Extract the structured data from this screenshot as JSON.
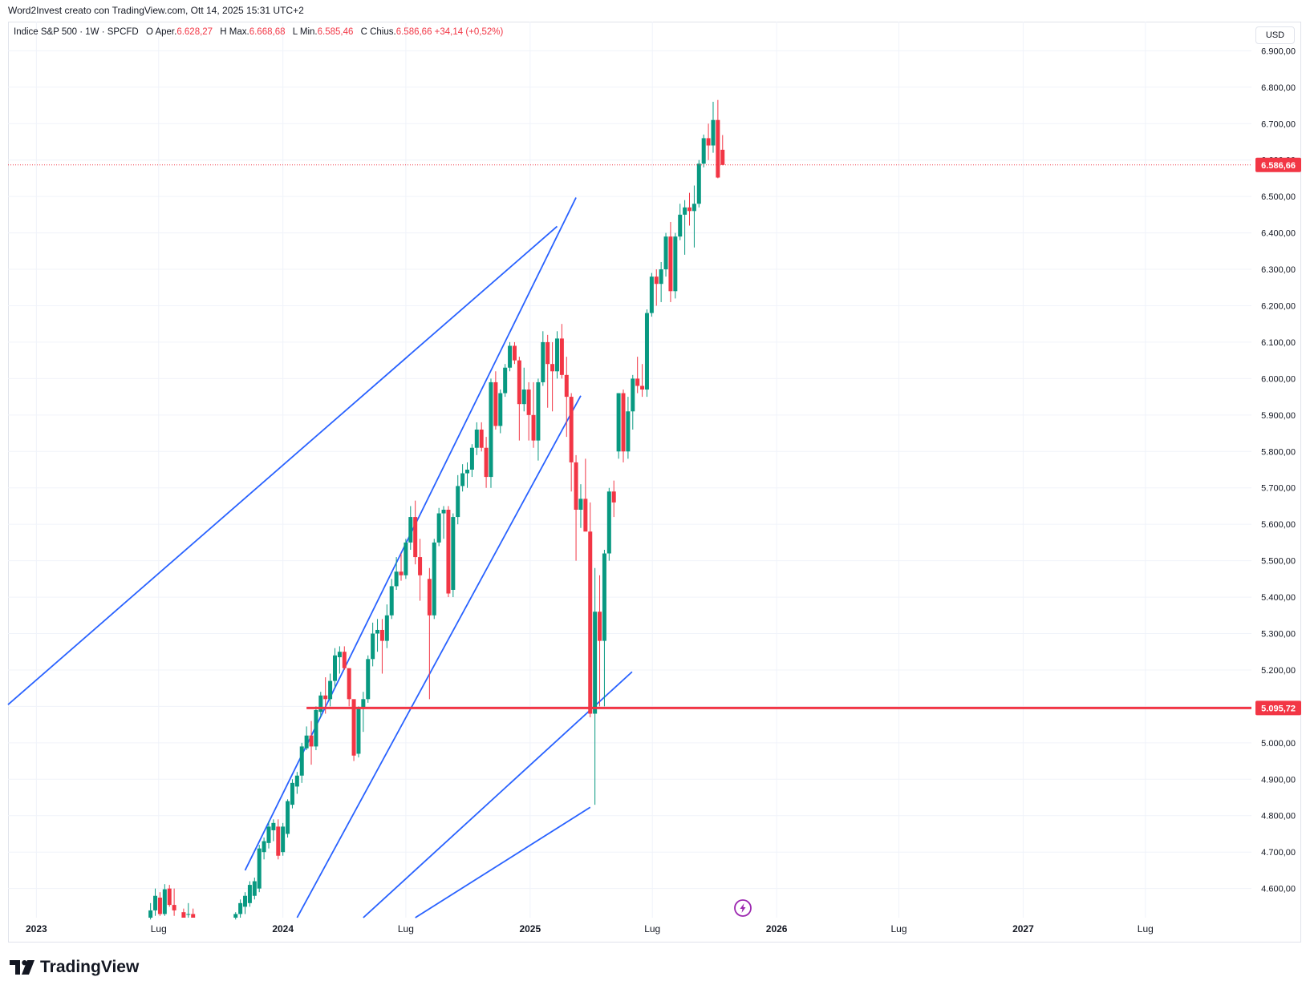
{
  "header": {
    "caption": "Word2Invest creato con TradingView.com, Ott 14, 2025 15:31 UTC+2"
  },
  "legend": {
    "symbol": "Indice S&P 500 · 1W · SPCFD",
    "open_label": "O",
    "open_prefix": "Aper.",
    "open_value": "6.628,27",
    "high_label": "H",
    "high_prefix": "Max.",
    "high_value": "6.668,68",
    "low_label": "L",
    "low_prefix": "Min.",
    "low_value": "6.585,46",
    "close_label": "C",
    "close_prefix": "Chius.",
    "close_value": "6.586,66",
    "change_value": "+34,14 (+0,52%)"
  },
  "currency_button": "USD",
  "footer": {
    "brand": "TradingView"
  },
  "colors": {
    "up": "#089981",
    "down": "#f23645",
    "trendline": "#2962ff",
    "support": "#f23645",
    "grid": "#f0f3fa"
  },
  "chart_data": {
    "type": "candlestick",
    "symbol": "Indice S&P 500",
    "interval": "1W",
    "ylim": [
      4520,
      6980
    ],
    "xlim": [
      "2022-11-20",
      "2027-12-05"
    ],
    "y_ticks": [
      {
        "value": 4600,
        "label": "4.600,00"
      },
      {
        "value": 4700,
        "label": "4.700,00"
      },
      {
        "value": 4800,
        "label": "4.800,00"
      },
      {
        "value": 4900,
        "label": "4.900,00"
      },
      {
        "value": 5000,
        "label": "5.000,00"
      },
      {
        "value": 5100,
        "label": "5.100,00"
      },
      {
        "value": 5200,
        "label": "5.200,00"
      },
      {
        "value": 5300,
        "label": "5.300,00"
      },
      {
        "value": 5400,
        "label": "5.400,00"
      },
      {
        "value": 5500,
        "label": "5.500,00"
      },
      {
        "value": 5600,
        "label": "5.600,00"
      },
      {
        "value": 5700,
        "label": "5.700,00"
      },
      {
        "value": 5800,
        "label": "5.800,00"
      },
      {
        "value": 5900,
        "label": "5.900,00"
      },
      {
        "value": 6000,
        "label": "6.000,00"
      },
      {
        "value": 6100,
        "label": "6.100,00"
      },
      {
        "value": 6200,
        "label": "6.200,00"
      },
      {
        "value": 6300,
        "label": "6.300,00"
      },
      {
        "value": 6400,
        "label": "6.400,00"
      },
      {
        "value": 6500,
        "label": "6.500,00"
      },
      {
        "value": 6600,
        "label": "6.600,00"
      },
      {
        "value": 6700,
        "label": "6.700,00"
      },
      {
        "value": 6800,
        "label": "6.800,00"
      },
      {
        "value": 6900,
        "label": "6.900,00"
      }
    ],
    "x_ticks": [
      {
        "date": "2023-01-01",
        "label": "2023",
        "bold": true
      },
      {
        "date": "2023-07-01",
        "label": "Lug",
        "bold": false
      },
      {
        "date": "2024-01-01",
        "label": "2024",
        "bold": true
      },
      {
        "date": "2024-07-01",
        "label": "Lug",
        "bold": false
      },
      {
        "date": "2025-01-01",
        "label": "2025",
        "bold": true
      },
      {
        "date": "2025-07-01",
        "label": "Lug",
        "bold": false
      },
      {
        "date": "2026-01-01",
        "label": "2026",
        "bold": true
      },
      {
        "date": "2026-07-01",
        "label": "Lug",
        "bold": false
      },
      {
        "date": "2027-01-01",
        "label": "2027",
        "bold": true
      },
      {
        "date": "2027-07-01",
        "label": "Lug",
        "bold": false
      }
    ],
    "price_labels": [
      {
        "value": 6586.66,
        "label": "6.586,66",
        "style": "dotted"
      },
      {
        "value": 5095.72,
        "label": "5.095,72",
        "style": "solid"
      }
    ],
    "support_line": {
      "value": 5095.72,
      "from": "2024-02-05"
    },
    "trendlines": [
      {
        "from": [
          "2022-11-20",
          5105
        ],
        "to": [
          "2025-02-10",
          6418
        ]
      },
      {
        "from": [
          "2023-11-06",
          4650
        ],
        "to": [
          "2025-03-10",
          6497
        ]
      },
      {
        "from": [
          "2024-01-22",
          4520
        ],
        "to": [
          "2025-03-17",
          5953
        ]
      },
      {
        "from": [
          "2024-04-29",
          4520
        ],
        "to": [
          "2025-06-01",
          5195
        ]
      },
      {
        "from": [
          "2024-07-15",
          4520
        ],
        "to": [
          "2025-03-31",
          4823
        ]
      }
    ],
    "candles": [
      {
        "date": "2023-06-19",
        "open": 4520,
        "high": 4560,
        "low": 4515,
        "close": 4540
      },
      {
        "date": "2023-06-26",
        "open": 4540,
        "high": 4600,
        "low": 4525,
        "close": 4580
      },
      {
        "date": "2023-07-03",
        "open": 4575,
        "high": 4590,
        "low": 4525,
        "close": 4530
      },
      {
        "date": "2023-07-10",
        "open": 4530,
        "high": 4612,
        "low": 4525,
        "close": 4598
      },
      {
        "date": "2023-07-17",
        "open": 4600,
        "high": 4610,
        "low": 4550,
        "close": 4555
      },
      {
        "date": "2023-07-24",
        "open": 4555,
        "high": 4600,
        "low": 4525,
        "close": 4540
      },
      {
        "date": "2023-08-07",
        "open": 4535,
        "high": 4545,
        "low": 4520,
        "close": 4520
      },
      {
        "date": "2023-08-14",
        "open": 4530,
        "high": 4560,
        "low": 4520,
        "close": 4530
      },
      {
        "date": "2023-08-21",
        "open": 4530,
        "high": 4545,
        "low": 4520,
        "close": 4520
      },
      {
        "date": "2023-10-23",
        "open": 4520,
        "high": 4535,
        "low": 4515,
        "close": 4530
      },
      {
        "date": "2023-10-30",
        "open": 4530,
        "high": 4570,
        "low": 4520,
        "close": 4560
      },
      {
        "date": "2023-11-06",
        "open": 4550,
        "high": 4590,
        "low": 4530,
        "close": 4580
      },
      {
        "date": "2023-11-13",
        "open": 4560,
        "high": 4620,
        "low": 4550,
        "close": 4610
      },
      {
        "date": "2023-11-20",
        "open": 4580,
        "high": 4630,
        "low": 4570,
        "close": 4620
      },
      {
        "date": "2023-11-27",
        "open": 4600,
        "high": 4720,
        "low": 4590,
        "close": 4710
      },
      {
        "date": "2023-12-04",
        "open": 4700,
        "high": 4740,
        "low": 4680,
        "close": 4730
      },
      {
        "date": "2023-12-11",
        "open": 4725,
        "high": 4785,
        "low": 4710,
        "close": 4770
      },
      {
        "date": "2023-12-18",
        "open": 4760,
        "high": 4790,
        "low": 4730,
        "close": 4780
      },
      {
        "date": "2023-12-25",
        "open": 4770,
        "high": 4790,
        "low": 4680,
        "close": 4690
      },
      {
        "date": "2024-01-01",
        "open": 4700,
        "high": 4780,
        "low": 4690,
        "close": 4770
      },
      {
        "date": "2024-01-08",
        "open": 4750,
        "high": 4845,
        "low": 4740,
        "close": 4840
      },
      {
        "date": "2024-01-15",
        "open": 4830,
        "high": 4900,
        "low": 4820,
        "close": 4890
      },
      {
        "date": "2024-01-22",
        "open": 4880,
        "high": 4920,
        "low": 4860,
        "close": 4910
      },
      {
        "date": "2024-01-29",
        "open": 4910,
        "high": 5000,
        "low": 4890,
        "close": 4990
      },
      {
        "date": "2024-02-05",
        "open": 4985,
        "high": 5045,
        "low": 4980,
        "close": 5020
      },
      {
        "date": "2024-02-12",
        "open": 5020,
        "high": 5060,
        "low": 4940,
        "close": 4990
      },
      {
        "date": "2024-02-19",
        "open": 4990,
        "high": 5100,
        "low": 4980,
        "close": 5090
      },
      {
        "date": "2024-02-26",
        "open": 5085,
        "high": 5140,
        "low": 5070,
        "close": 5130
      },
      {
        "date": "2024-03-04",
        "open": 5130,
        "high": 5180,
        "low": 5080,
        "close": 5120
      },
      {
        "date": "2024-03-11",
        "open": 5120,
        "high": 5190,
        "low": 5100,
        "close": 5170
      },
      {
        "date": "2024-03-18",
        "open": 5170,
        "high": 5260,
        "low": 5150,
        "close": 5240
      },
      {
        "date": "2024-03-25",
        "open": 5235,
        "high": 5265,
        "low": 5190,
        "close": 5250
      },
      {
        "date": "2024-04-01",
        "open": 5250,
        "high": 5265,
        "low": 5200,
        "close": 5205
      },
      {
        "date": "2024-04-08",
        "open": 5205,
        "high": 5200,
        "low": 5100,
        "close": 5120
      },
      {
        "date": "2024-04-15",
        "open": 5120,
        "high": 5115,
        "low": 4950,
        "close": 4965
      },
      {
        "date": "2024-04-22",
        "open": 4970,
        "high": 5100,
        "low": 4960,
        "close": 5095
      },
      {
        "date": "2024-04-29",
        "open": 5095,
        "high": 5140,
        "low": 5030,
        "close": 5120
      },
      {
        "date": "2024-05-06",
        "open": 5120,
        "high": 5240,
        "low": 5110,
        "close": 5230
      },
      {
        "date": "2024-05-13",
        "open": 5230,
        "high": 5330,
        "low": 5210,
        "close": 5300
      },
      {
        "date": "2024-05-20",
        "open": 5300,
        "high": 5340,
        "low": 5250,
        "close": 5310
      },
      {
        "date": "2024-05-27",
        "open": 5310,
        "high": 5340,
        "low": 5190,
        "close": 5280
      },
      {
        "date": "2024-06-03",
        "open": 5280,
        "high": 5380,
        "low": 5260,
        "close": 5350
      },
      {
        "date": "2024-06-10",
        "open": 5350,
        "high": 5450,
        "low": 5340,
        "close": 5430
      },
      {
        "date": "2024-06-17",
        "open": 5430,
        "high": 5510,
        "low": 5420,
        "close": 5470
      },
      {
        "date": "2024-06-24",
        "open": 5470,
        "high": 5520,
        "low": 5445,
        "close": 5460
      },
      {
        "date": "2024-07-01",
        "open": 5460,
        "high": 5560,
        "low": 5450,
        "close": 5550
      },
      {
        "date": "2024-07-08",
        "open": 5550,
        "high": 5650,
        "low": 5530,
        "close": 5620
      },
      {
        "date": "2024-07-15",
        "open": 5620,
        "high": 5665,
        "low": 5490,
        "close": 5510
      },
      {
        "date": "2024-07-22",
        "open": 5510,
        "high": 5560,
        "low": 5390,
        "close": 5460
      },
      {
        "date": "2024-08-05",
        "open": 5450,
        "high": 5480,
        "low": 5120,
        "close": 5350
      },
      {
        "date": "2024-08-12",
        "open": 5350,
        "high": 5560,
        "low": 5340,
        "close": 5550
      },
      {
        "date": "2024-08-19",
        "open": 5550,
        "high": 5645,
        "low": 5540,
        "close": 5630
      },
      {
        "date": "2024-08-26",
        "open": 5630,
        "high": 5650,
        "low": 5560,
        "close": 5640
      },
      {
        "date": "2024-09-02",
        "open": 5640,
        "high": 5650,
        "low": 5400,
        "close": 5410
      },
      {
        "date": "2024-09-09",
        "open": 5420,
        "high": 5630,
        "low": 5400,
        "close": 5620
      },
      {
        "date": "2024-09-16",
        "open": 5620,
        "high": 5735,
        "low": 5600,
        "close": 5705
      },
      {
        "date": "2024-09-23",
        "open": 5705,
        "high": 5765,
        "low": 5690,
        "close": 5740
      },
      {
        "date": "2024-09-30",
        "open": 5740,
        "high": 5770,
        "low": 5700,
        "close": 5750
      },
      {
        "date": "2024-10-07",
        "open": 5750,
        "high": 5820,
        "low": 5730,
        "close": 5810
      },
      {
        "date": "2024-10-14",
        "open": 5810,
        "high": 5880,
        "low": 5790,
        "close": 5860
      },
      {
        "date": "2024-10-21",
        "open": 5860,
        "high": 5880,
        "low": 5800,
        "close": 5810
      },
      {
        "date": "2024-10-28",
        "open": 5810,
        "high": 5840,
        "low": 5700,
        "close": 5730
      },
      {
        "date": "2024-11-04",
        "open": 5730,
        "high": 6000,
        "low": 5700,
        "close": 5990
      },
      {
        "date": "2024-11-11",
        "open": 5990,
        "high": 6020,
        "low": 5860,
        "close": 5870
      },
      {
        "date": "2024-11-18",
        "open": 5870,
        "high": 5970,
        "low": 5850,
        "close": 5960
      },
      {
        "date": "2024-11-25",
        "open": 5960,
        "high": 6040,
        "low": 5950,
        "close": 6030
      },
      {
        "date": "2024-12-02",
        "open": 6030,
        "high": 6100,
        "low": 6020,
        "close": 6090
      },
      {
        "date": "2024-12-09",
        "open": 6090,
        "high": 6100,
        "low": 6040,
        "close": 6050
      },
      {
        "date": "2024-12-16",
        "open": 6050,
        "high": 6060,
        "low": 5830,
        "close": 5930
      },
      {
        "date": "2024-12-23",
        "open": 5930,
        "high": 6030,
        "low": 5910,
        "close": 5970
      },
      {
        "date": "2024-12-30",
        "open": 5970,
        "high": 5990,
        "low": 5830,
        "close": 5900
      },
      {
        "date": "2025-01-06",
        "open": 5900,
        "high": 5990,
        "low": 5810,
        "close": 5830
      },
      {
        "date": "2025-01-13",
        "open": 5830,
        "high": 6000,
        "low": 5775,
        "close": 5990
      },
      {
        "date": "2025-01-20",
        "open": 5990,
        "high": 6130,
        "low": 5980,
        "close": 6100
      },
      {
        "date": "2025-01-27",
        "open": 6100,
        "high": 6120,
        "low": 5920,
        "close": 6040
      },
      {
        "date": "2025-02-03",
        "open": 6040,
        "high": 6100,
        "low": 5910,
        "close": 6020
      },
      {
        "date": "2025-02-10",
        "open": 6020,
        "high": 6130,
        "low": 6000,
        "close": 6110
      },
      {
        "date": "2025-02-17",
        "open": 6110,
        "high": 6150,
        "low": 6000,
        "close": 6010
      },
      {
        "date": "2025-02-24",
        "open": 6010,
        "high": 6060,
        "low": 5840,
        "close": 5950
      },
      {
        "date": "2025-03-03",
        "open": 5950,
        "high": 5960,
        "low": 5690,
        "close": 5770
      },
      {
        "date": "2025-03-10",
        "open": 5770,
        "high": 5790,
        "low": 5500,
        "close": 5640
      },
      {
        "date": "2025-03-17",
        "open": 5640,
        "high": 5710,
        "low": 5590,
        "close": 5670
      },
      {
        "date": "2025-03-24",
        "open": 5670,
        "high": 5780,
        "low": 5590,
        "close": 5580
      },
      {
        "date": "2025-03-31",
        "open": 5580,
        "high": 5660,
        "low": 5070,
        "close": 5080
      },
      {
        "date": "2025-04-07",
        "open": 5080,
        "high": 5480,
        "low": 4830,
        "close": 5360
      },
      {
        "date": "2025-04-14",
        "open": 5360,
        "high": 5460,
        "low": 5100,
        "close": 5280
      },
      {
        "date": "2025-04-21",
        "open": 5280,
        "high": 5530,
        "low": 5100,
        "close": 5520
      },
      {
        "date": "2025-04-28",
        "open": 5520,
        "high": 5700,
        "low": 5500,
        "close": 5690
      },
      {
        "date": "2025-05-05",
        "open": 5690,
        "high": 5720,
        "low": 5620,
        "close": 5660
      },
      {
        "date": "2025-05-12",
        "open": 5800,
        "high": 5960,
        "low": 5780,
        "close": 5960
      },
      {
        "date": "2025-05-19",
        "open": 5960,
        "high": 5970,
        "low": 5770,
        "close": 5800
      },
      {
        "date": "2025-05-26",
        "open": 5800,
        "high": 5950,
        "low": 5780,
        "close": 5910
      },
      {
        "date": "2025-06-02",
        "open": 5910,
        "high": 6010,
        "low": 5860,
        "close": 6000
      },
      {
        "date": "2025-06-09",
        "open": 6000,
        "high": 6060,
        "low": 5960,
        "close": 5980
      },
      {
        "date": "2025-06-16",
        "open": 5980,
        "high": 6040,
        "low": 5950,
        "close": 5970
      },
      {
        "date": "2025-06-23",
        "open": 5970,
        "high": 6190,
        "low": 5950,
        "close": 6180
      },
      {
        "date": "2025-06-30",
        "open": 6180,
        "high": 6290,
        "low": 6170,
        "close": 6280
      },
      {
        "date": "2025-07-07",
        "open": 6280,
        "high": 6300,
        "low": 6200,
        "close": 6260
      },
      {
        "date": "2025-07-14",
        "open": 6260,
        "high": 6320,
        "low": 6210,
        "close": 6300
      },
      {
        "date": "2025-07-21",
        "open": 6300,
        "high": 6400,
        "low": 6280,
        "close": 6390
      },
      {
        "date": "2025-07-28",
        "open": 6390,
        "high": 6430,
        "low": 6210,
        "close": 6240
      },
      {
        "date": "2025-08-04",
        "open": 6240,
        "high": 6400,
        "low": 6220,
        "close": 6390
      },
      {
        "date": "2025-08-11",
        "open": 6390,
        "high": 6480,
        "low": 6380,
        "close": 6450
      },
      {
        "date": "2025-08-18",
        "open": 6450,
        "high": 6490,
        "low": 6340,
        "close": 6470
      },
      {
        "date": "2025-08-25",
        "open": 6470,
        "high": 6510,
        "low": 6420,
        "close": 6460
      },
      {
        "date": "2025-09-01",
        "open": 6460,
        "high": 6530,
        "low": 6360,
        "close": 6480
      },
      {
        "date": "2025-09-08",
        "open": 6480,
        "high": 6600,
        "low": 6470,
        "close": 6590
      },
      {
        "date": "2025-09-15",
        "open": 6590,
        "high": 6670,
        "low": 6580,
        "close": 6660
      },
      {
        "date": "2025-09-22",
        "open": 6660,
        "high": 6700,
        "low": 6600,
        "close": 6640
      },
      {
        "date": "2025-09-29",
        "open": 6640,
        "high": 6760,
        "low": 6620,
        "close": 6710
      },
      {
        "date": "2025-10-06",
        "open": 6710,
        "high": 6765,
        "low": 6550,
        "close": 6552
      },
      {
        "date": "2025-10-13",
        "open": 6628.27,
        "high": 6668.68,
        "low": 6585.46,
        "close": 6586.66
      }
    ]
  }
}
